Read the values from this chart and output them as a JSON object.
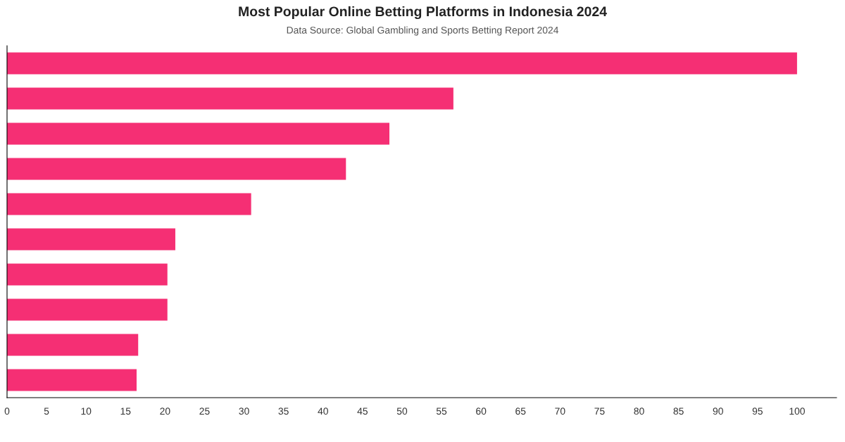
{
  "chart_data": {
    "type": "bar",
    "orientation": "horizontal",
    "title": "Most Popular Online Betting Platforms in Indonesia 2024",
    "subtitle": "Data Source: Global Gambling and Sports Betting Report 2024",
    "categories": [
      null,
      null,
      null,
      null,
      null,
      null,
      null,
      null,
      null,
      null
    ],
    "values": [
      100,
      56.5,
      48.4,
      42.9,
      30.9,
      21.3,
      20.3,
      20.3,
      16.6,
      16.4
    ],
    "color": "#f52f74",
    "xlim": [
      0,
      105
    ],
    "xticks": [
      0,
      5,
      10,
      15,
      20,
      25,
      30,
      35,
      40,
      45,
      50,
      55,
      60,
      65,
      70,
      75,
      80,
      85,
      90,
      95,
      100
    ],
    "grid": false,
    "legend": false,
    "tick_labels": "x"
  }
}
